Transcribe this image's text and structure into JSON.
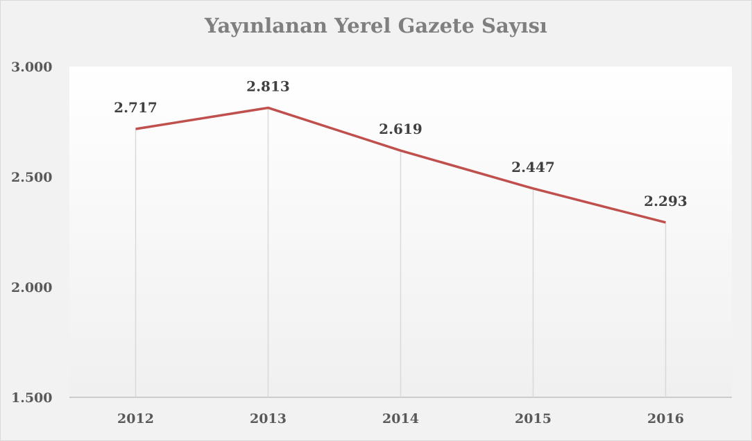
{
  "chart_data": {
    "type": "line",
    "title": "Yayınlanan Yerel Gazete Sayısı",
    "categories": [
      "2012",
      "2013",
      "2014",
      "2015",
      "2016"
    ],
    "series": [
      {
        "values": [
          2717,
          2813,
          2619,
          2447,
          2293
        ],
        "labels": [
          "2.717",
          "2.813",
          "2.619",
          "2.447",
          "2.293"
        ],
        "color": "#c0504d"
      }
    ],
    "ylim": [
      1500,
      3000
    ],
    "yticks": [
      1500,
      2000,
      2500,
      3000
    ],
    "ytick_labels": [
      "1.500",
      "2.000",
      "2.500",
      "3.000"
    ],
    "xlabel": "",
    "ylabel": "",
    "grid": "vertical drop lines"
  }
}
